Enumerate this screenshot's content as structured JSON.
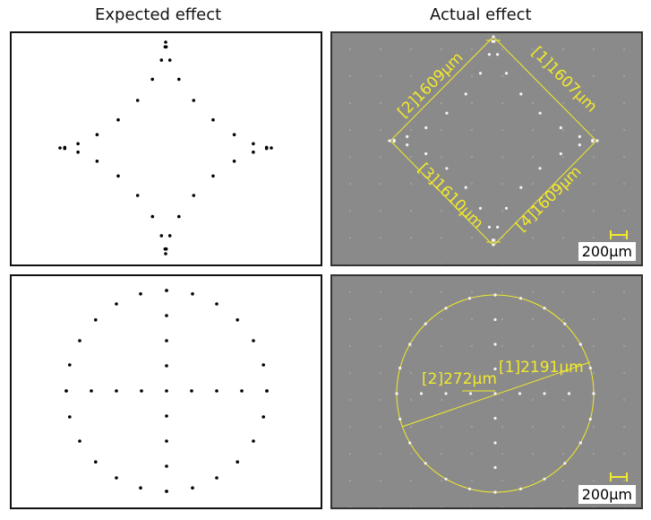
{
  "headers": {
    "expected": "Expected effect",
    "actual": "Actual effect"
  },
  "diamond": {
    "labels": [
      "[2]1609μm",
      "[1]1607μm",
      "[3]1610μm",
      "[4]1609μm"
    ],
    "scale_bar": "200μm"
  },
  "circle": {
    "labels": [
      "[2]272μm",
      "[1]2191μm"
    ],
    "scale_bar": "200μm"
  },
  "colors": {
    "measurement": "#f3ea2a",
    "panel_gray": "#8a8a8a"
  }
}
